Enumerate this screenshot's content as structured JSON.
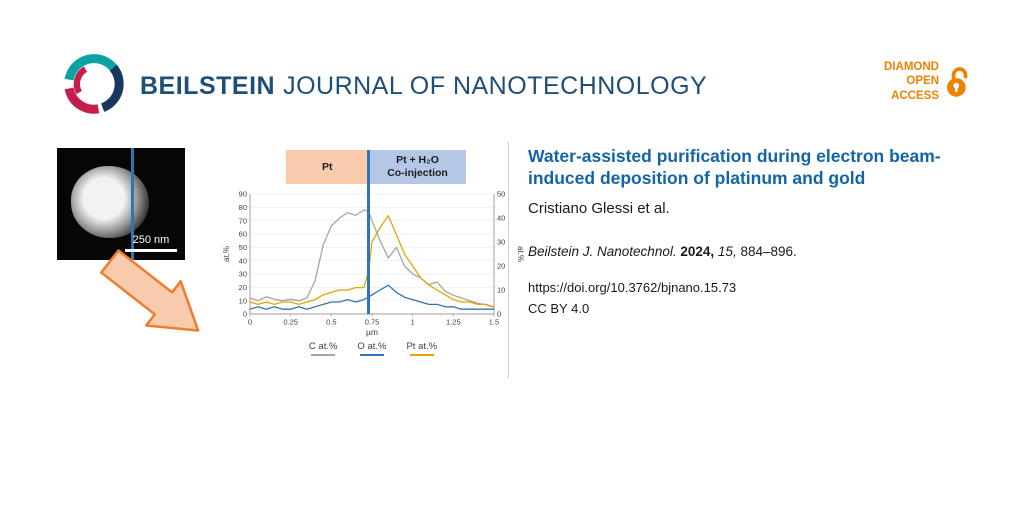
{
  "header": {
    "journal_bold": "BEILSTEIN",
    "journal_rest": "JOURNAL OF NANOTECHNOLOGY",
    "open_access": {
      "line1": "DIAMOND",
      "line2": "OPEN",
      "line3": "ACCESS",
      "color": "#EF8200"
    }
  },
  "sem": {
    "scale_label": "250 nm"
  },
  "chart_data": {
    "type": "line",
    "title": "",
    "xlabel": "µm",
    "ylabel_left": "at.%",
    "ylabel_right": "at.%",
    "xlim": [
      0,
      1.5
    ],
    "ylim_left": [
      0,
      90
    ],
    "ylim_right": [
      0,
      50
    ],
    "left_ticks": [
      0,
      10,
      20,
      30,
      40,
      50,
      60,
      70,
      80,
      90
    ],
    "right_ticks": [
      0,
      10,
      20,
      30,
      40,
      50
    ],
    "x_ticks": [
      0,
      0.25,
      0.5,
      0.75,
      1,
      1.25,
      1.5
    ],
    "divider_x": 0.73,
    "divider_color": "#2E75B6",
    "grid": true,
    "legend_position": "bottom",
    "regions": [
      {
        "label": "Pt",
        "label2": "",
        "from": 0.22,
        "to": 0.73,
        "color": "#F8CBAD"
      },
      {
        "label": "Pt + H₂O",
        "label2": "Co-injection",
        "from": 0.73,
        "to": 1.33,
        "color": "#B4C7E7"
      }
    ],
    "x": [
      0,
      0.05,
      0.1,
      0.15,
      0.2,
      0.25,
      0.3,
      0.35,
      0.4,
      0.45,
      0.5,
      0.55,
      0.6,
      0.65,
      0.7,
      0.73,
      0.75,
      0.8,
      0.85,
      0.9,
      0.95,
      1.0,
      1.05,
      1.1,
      1.15,
      1.2,
      1.25,
      1.3,
      1.35,
      1.4,
      1.45,
      1.5
    ],
    "series": [
      {
        "name": "C at.%",
        "color": "#A6A6A6",
        "axis": "left",
        "y": [
          12,
          10,
          13,
          11,
          10,
          11,
          10,
          12,
          25,
          52,
          66,
          72,
          76,
          74,
          78,
          77,
          70,
          55,
          42,
          50,
          36,
          30,
          27,
          22,
          24,
          17,
          14,
          12,
          10,
          8,
          7,
          5
        ]
      },
      {
        "name": "O at.%",
        "color": "#2E75B6",
        "axis": "right",
        "y": [
          2,
          3,
          2,
          3,
          2,
          2,
          3,
          2,
          3,
          4,
          5,
          5,
          6,
          5,
          6,
          7,
          8,
          10,
          12,
          9,
          7,
          6,
          5,
          4,
          4,
          3,
          3,
          2,
          2,
          2,
          2,
          2
        ]
      },
      {
        "name": "Pt at.%",
        "color": "#E8A400",
        "axis": "right",
        "y": [
          5,
          4,
          5,
          4,
          5,
          5,
          4,
          5,
          6,
          8,
          9,
          10,
          10,
          11,
          11,
          18,
          30,
          36,
          41,
          33,
          25,
          20,
          15,
          12,
          10,
          8,
          6,
          5,
          5,
          4,
          4,
          3
        ]
      }
    ]
  },
  "article": {
    "title": "Water-assisted purification during electron beam-induced deposition of platinum and gold",
    "authors": "Cristiano Glessi et al.",
    "citation": {
      "journal": "Beilstein J. Nanotechnol.",
      "year": "2024,",
      "volume": "15,",
      "pages": "884–896."
    },
    "doi": "https://doi.org/10.3762/bjnano.15.73",
    "license": "CC BY 4.0"
  }
}
